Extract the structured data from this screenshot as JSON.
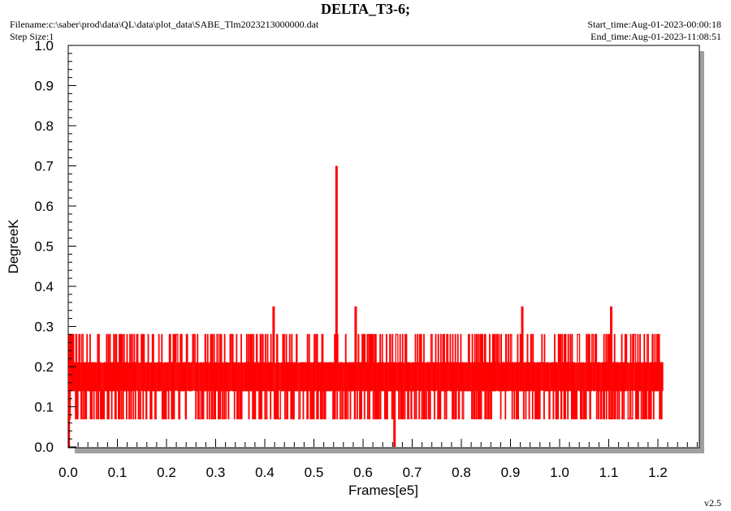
{
  "header": {
    "title": "DELTA_T3-6;",
    "filename": "Filename:c:\\saber\\prod\\data\\QL\\data\\plot_data\\SABE_Tlm2023213000000.dat",
    "step_size": "Step Size:1",
    "start_time": "Start_time:Aug-01-2023-00:00:18",
    "end_time": "End_time:Aug-01-2023-11:08:51"
  },
  "footer": {
    "version": "v2.5"
  },
  "colors": {
    "series": "#ff0000",
    "shadow": "#a0a0a0",
    "axis": "#000000"
  },
  "chart_data": {
    "type": "line",
    "title": "DELTA_T3-6;",
    "xlabel": "Frames[e5]",
    "ylabel": "DegreeK",
    "xlim": [
      0.0,
      1.28
    ],
    "ylim": [
      0.0,
      1.0
    ],
    "x_ticks": [
      "0.0",
      "0.1",
      "0.2",
      "0.3",
      "0.4",
      "0.5",
      "0.6",
      "0.7",
      "0.8",
      "0.9",
      "1.0",
      "1.1",
      "1.2"
    ],
    "y_ticks": [
      "0.0",
      "0.1",
      "0.2",
      "0.3",
      "0.4",
      "0.5",
      "0.6",
      "0.7",
      "0.8",
      "0.9",
      "1.0"
    ],
    "grid": false,
    "series": [
      {
        "band_levels": [
          0.07,
          0.14,
          0.21,
          0.28
        ],
        "x_range": [
          0.0,
          1.21
        ],
        "spikes": [
          {
            "x": 0.418,
            "y": 0.35
          },
          {
            "x": 0.546,
            "y": 0.7
          },
          {
            "x": 0.585,
            "y": 0.35
          },
          {
            "x": 0.664,
            "y": 0.0
          },
          {
            "x": 0.924,
            "y": 0.35
          },
          {
            "x": 1.105,
            "y": 0.35
          }
        ]
      }
    ]
  }
}
